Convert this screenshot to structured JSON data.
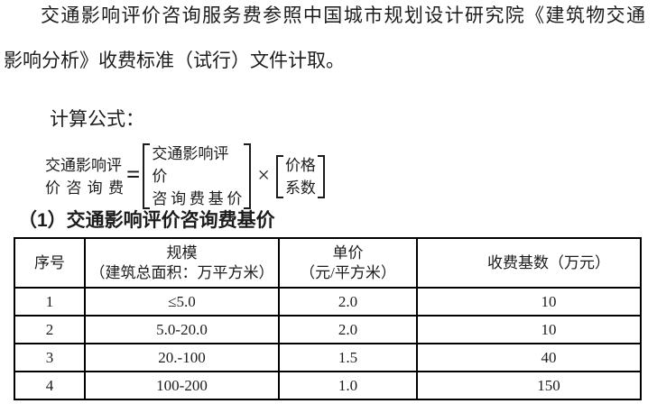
{
  "paragraph": {
    "lines": [
      "交通影响评价咨询服务费参照中国城市规划设计研究院《建筑物交通",
      "影响分析》收费标准（试行）文件计取。"
    ]
  },
  "formula_label": "计算公式：",
  "formula": {
    "lhs_line1": "交通影响评",
    "lhs_line2": "价咨询费",
    "equals": "=",
    "bracket1_line1": "交通影响评价",
    "bracket1_line2": "咨询费基价",
    "times": "×",
    "bracket2_line1": "价格",
    "bracket2_line2": "系数"
  },
  "table_title": "（1）交通影响评价咨询费基价",
  "table": {
    "headers": [
      {
        "line1": "序号",
        "line2": ""
      },
      {
        "line1": "规模",
        "line2": "（建筑总面积：万平方米）"
      },
      {
        "line1": "单价",
        "line2": "（元/平方米）"
      },
      {
        "line1": "收费基数（万元）",
        "line2": ""
      }
    ],
    "rows": [
      [
        "1",
        "≤5.0",
        "2.0",
        "10"
      ],
      [
        "2",
        "5.0-20.0",
        "2.0",
        "10"
      ],
      [
        "3",
        "20.-100",
        "1.5",
        "40"
      ],
      [
        "4",
        "100-200",
        "1.0",
        "150"
      ]
    ]
  }
}
